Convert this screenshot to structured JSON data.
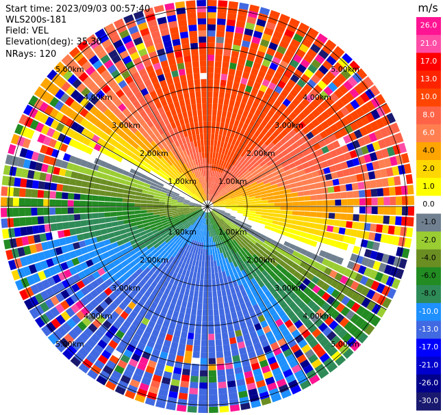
{
  "header": {
    "start_time": "Start time: 2023/09/03 00:57:40",
    "site": "WLS200s-181",
    "field": "Field: VEL",
    "elevation": "Elevation(deg): 35.30",
    "nrays": "NRays: 120"
  },
  "chart_data": {
    "type": "ppi",
    "field": "VEL",
    "units": "m/s",
    "n_rays": 120,
    "elevation_deg": 35.3,
    "range_ring_labels": [
      "1.00km",
      "2.00km",
      "3.00km",
      "4.00km",
      "5.00km"
    ],
    "range_rings_km": [
      1,
      2,
      3,
      4,
      5
    ],
    "max_range_km": 5.2,
    "colorbar": {
      "label": "m/s",
      "ticks": [
        "26.0",
        "21.0",
        "17.0",
        "13.0",
        "10.0",
        "8.0",
        "6.0",
        "4.0",
        "2.0",
        "1.0",
        "0.0",
        "-1.0",
        "-2.0",
        "-4.0",
        "-6.0",
        "-8.0",
        "-10.0",
        "-13.0",
        "-17.0",
        "-21.0",
        "-26.0",
        "-30.0"
      ],
      "bands": [
        {
          "from": 26,
          "to": 30,
          "color": "#ff1493"
        },
        {
          "from": 21,
          "to": 26,
          "color": "#ff4da6"
        },
        {
          "from": 17,
          "to": 21,
          "color": "#ff0000"
        },
        {
          "from": 13,
          "to": 17,
          "color": "#ff2400"
        },
        {
          "from": 10,
          "to": 13,
          "color": "#ff4500"
        },
        {
          "from": 8,
          "to": 10,
          "color": "#ff6347"
        },
        {
          "from": 6,
          "to": 8,
          "color": "#ff7f50"
        },
        {
          "from": 4,
          "to": 6,
          "color": "#ffa500"
        },
        {
          "from": 2,
          "to": 4,
          "color": "#ffd700"
        },
        {
          "from": 1,
          "to": 2,
          "color": "#ffff00"
        },
        {
          "from": 0,
          "to": 1,
          "color": "#ffffff"
        },
        {
          "from": -1,
          "to": 0,
          "color": "#708090"
        },
        {
          "from": -2,
          "to": -1,
          "color": "#9acd32"
        },
        {
          "from": -4,
          "to": -2,
          "color": "#6b8e23"
        },
        {
          "from": -6,
          "to": -4,
          "color": "#228b22"
        },
        {
          "from": -8,
          "to": -6,
          "color": "#2e8b57"
        },
        {
          "from": -10,
          "to": -8,
          "color": "#1e90ff"
        },
        {
          "from": -13,
          "to": -10,
          "color": "#4169e1"
        },
        {
          "from": -17,
          "to": -13,
          "color": "#0000ff"
        },
        {
          "from": -21,
          "to": -17,
          "color": "#0000cd"
        },
        {
          "from": -26,
          "to": -21,
          "color": "#00008b"
        },
        {
          "from": -30,
          "to": -26,
          "color": "#191970"
        }
      ]
    },
    "wind_pattern": {
      "toward_azimuth_deg": 20,
      "peak_mps": 12,
      "far_range_noise_start_km": 3.8
    }
  }
}
